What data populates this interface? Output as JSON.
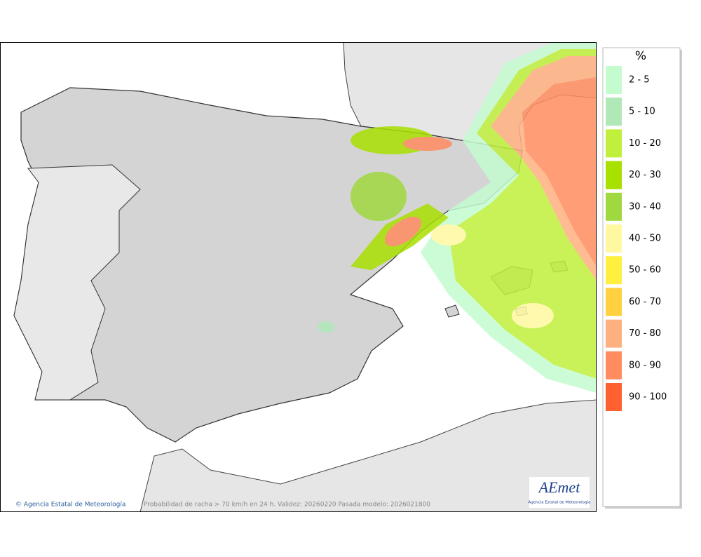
{
  "legend": {
    "title": "%",
    "items": [
      {
        "label": "2 - 5",
        "color": "#c4fcd0"
      },
      {
        "label": "5 - 10",
        "color": "#b0e8b8"
      },
      {
        "label": "10 - 20",
        "color": "#c0f03c"
      },
      {
        "label": "20 - 30",
        "color": "#a8e000"
      },
      {
        "label": "30 - 40",
        "color": "#a0d840"
      },
      {
        "label": "40 - 50",
        "color": "#fff8a0"
      },
      {
        "label": "50 - 60",
        "color": "#fff040"
      },
      {
        "label": "60 - 70",
        "color": "#ffd040"
      },
      {
        "label": "70 - 80",
        "color": "#ffb080"
      },
      {
        "label": "80 - 90",
        "color": "#ff8c60"
      },
      {
        "label": "90 - 100",
        "color": "#ff6030"
      }
    ]
  },
  "footer": {
    "credit": "© Agencia Estatal de Meteorología",
    "caption": "Probabilidad de racha > 70 km/h en 24 h. Validez: 20260220 Pasada modelo: 2026021800"
  },
  "logo": {
    "text": "AEmet",
    "subtitle": "Agencia Estatal de Meteorología"
  }
}
